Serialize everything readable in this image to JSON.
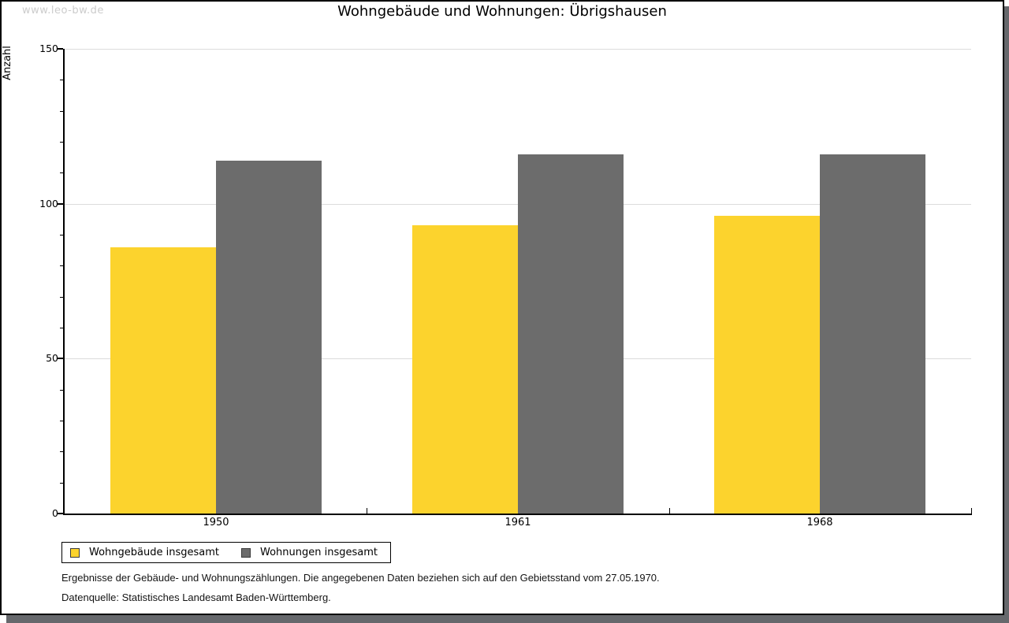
{
  "watermark": "www.leo-bw.de",
  "chart_data": {
    "type": "bar",
    "title": "Wohngebäude und Wohnungen: Übrigshausen",
    "ylabel": "Anzahl",
    "xlabel": "",
    "categories": [
      "1950",
      "1961",
      "1968"
    ],
    "series": [
      {
        "key": "wohngebaeude",
        "name": "Wohngebäude insgesamt",
        "color": "#fcd32d",
        "values": [
          86,
          93,
          96
        ]
      },
      {
        "key": "wohnungen",
        "name": "Wohnungen insgesamt",
        "color": "#6c6c6c",
        "values": [
          114,
          116,
          116
        ]
      }
    ],
    "ylim": [
      0,
      150
    ],
    "y_major_ticks": [
      0,
      50,
      100,
      150
    ],
    "y_minor_step": 10,
    "grid": "horizontal-major",
    "gridline_color": "#dcdcdc",
    "legend_position": "bottom-left"
  },
  "footer": {
    "line1": "Ergebnisse der Gebäude- und Wohnungszählungen. Die angegebenen Daten beziehen sich auf den Gebietsstand vom 27.05.1970.",
    "line2": "Datenquelle: Statistisches Landesamt Baden-Württemberg."
  }
}
